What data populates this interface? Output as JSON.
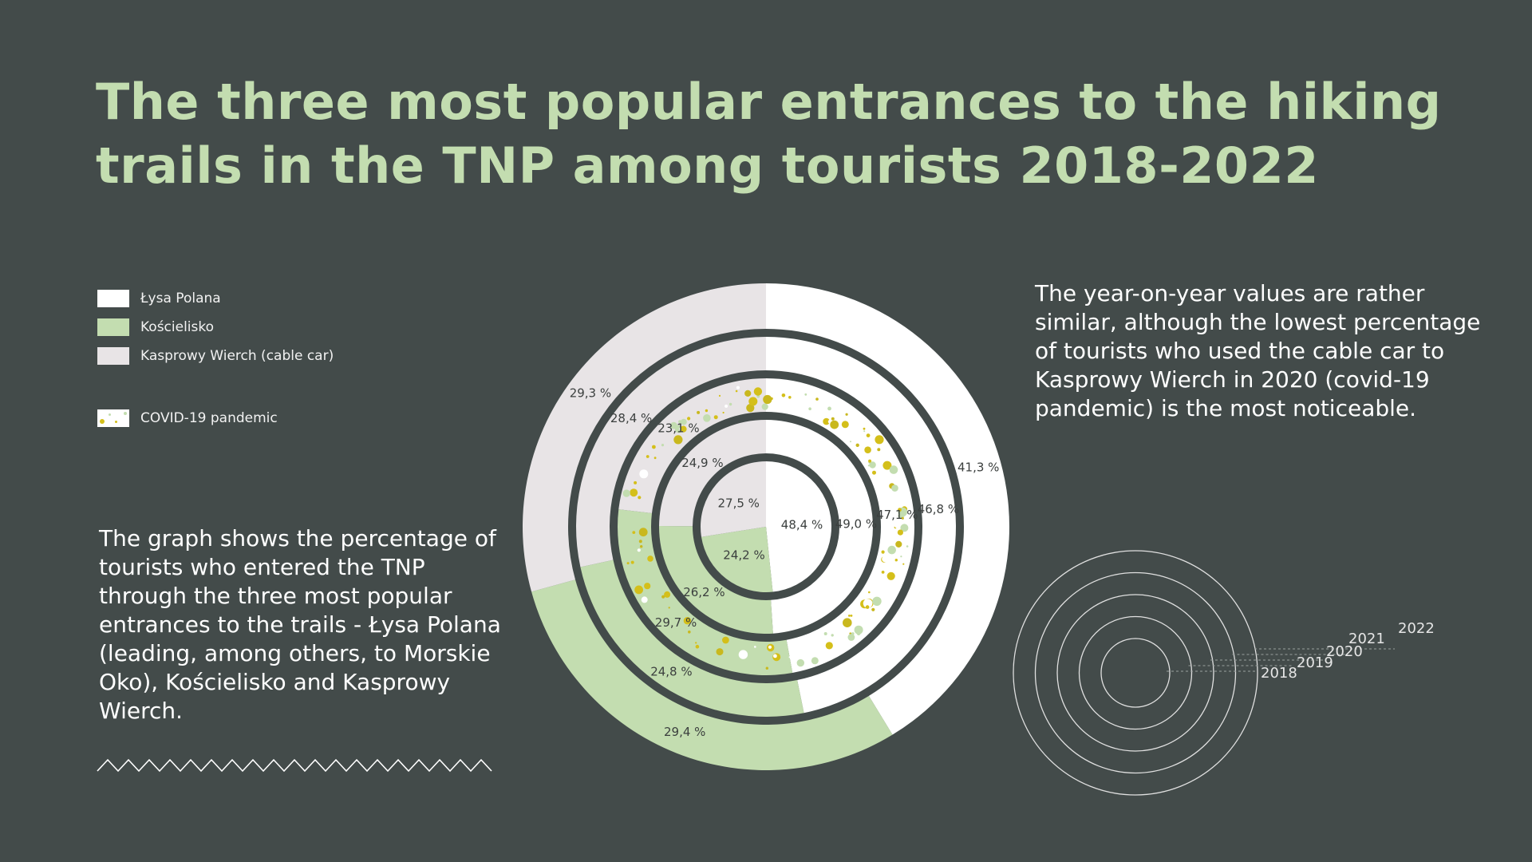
{
  "title": "The three most popular entrances to the hiking trails in the TNP among tourists 2018-2022",
  "legend": {
    "lysa": "Łysa Polana",
    "koscielisko": "Kościelisko",
    "kasprowy": "Kasprowy Wierch (cable car)",
    "covid": "COVID-19 pandemic"
  },
  "description_left": "The graph shows the percentage of tourists who entered the TNP through the three most popular entrances to the trails - Łysa Polana (leading, among others, to Morskie Oko), Kościelisko and Kasprowy Wierch.",
  "description_right": "The year-on-year values are rather similar, although the lowest percentage of tourists who used the cable car to Kasprowy Wierch in 2020 (covid-19 pandemic) is the most noticeable.",
  "colors": {
    "background": "#434b4a",
    "title": "#c3ddb0",
    "lysa": "#ffffff",
    "koscielisko": "#c3ddb0",
    "kasprowy": "#e8e4e6",
    "covid_dots": "#d4bf1a"
  },
  "chart_data": {
    "type": "radial-stacked-bar",
    "years": [
      "2018",
      "2019",
      "2020",
      "2021",
      "2022"
    ],
    "series": [
      {
        "name": "Łysa Polana",
        "values": [
          48.4,
          49.0,
          47.1,
          46.8,
          41.3
        ],
        "labels": [
          "48,4 %",
          "49,0 %",
          "47,1 %",
          "46,8 %",
          "41,3 %"
        ]
      },
      {
        "name": "Kościelisko",
        "values": [
          24.2,
          26.2,
          29.7,
          24.8,
          29.4
        ],
        "labels": [
          "24,2 %",
          "26,2 %",
          "29,7 %",
          "24,8 %",
          "29,4 %"
        ]
      },
      {
        "name": "Kasprowy Wierch (cable car)",
        "values": [
          27.5,
          24.9,
          23.1,
          28.4,
          29.3
        ],
        "labels": [
          "27,5 %",
          "24,9 %",
          "23,1 %",
          "28,4 %",
          "29,3 %"
        ]
      }
    ],
    "highlight": {
      "year": "2020",
      "label": "COVID-19 pandemic"
    },
    "ring_order": "inner-to-outer by year"
  }
}
